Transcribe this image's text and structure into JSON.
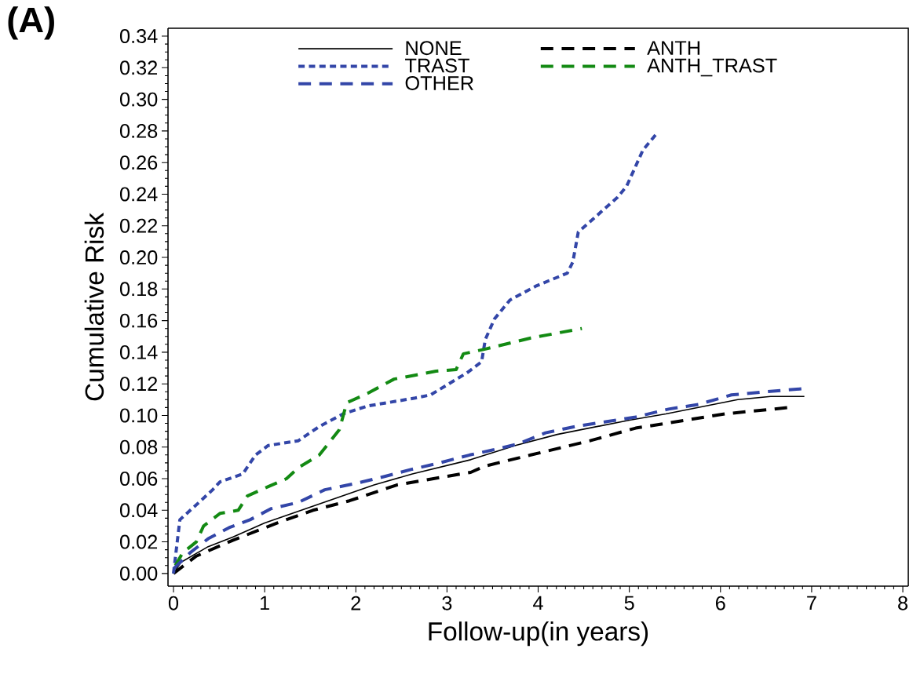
{
  "chart_data": {
    "type": "line",
    "xlabel": "Follow-up(in years)",
    "ylabel": "Cumulative Risk",
    "annotations": [
      "(A)"
    ],
    "xlim": [
      -0.06,
      8.06
    ],
    "ylim": [
      -0.008,
      0.345
    ],
    "xticks": [
      0,
      1,
      2,
      3,
      4,
      5,
      6,
      7,
      8
    ],
    "yticks": [
      {
        "value": 0,
        "label": "0.00"
      },
      {
        "value": 0.02,
        "label": "0.02"
      },
      {
        "value": 0.04,
        "label": "0.04"
      },
      {
        "value": 0.06,
        "label": "0.06"
      },
      {
        "value": 0.08,
        "label": "0.08"
      },
      {
        "value": 0.1,
        "label": "0.10"
      },
      {
        "value": 0.12,
        "label": "0.12"
      },
      {
        "value": 0.14,
        "label": "0.14"
      },
      {
        "value": 0.16,
        "label": "0.16"
      },
      {
        "value": 0.18,
        "label": "0.18"
      },
      {
        "value": 0.2,
        "label": "0.20"
      },
      {
        "value": 0.22,
        "label": "0.22"
      },
      {
        "value": 0.24,
        "label": "0.24"
      },
      {
        "value": 0.26,
        "label": "0.26"
      },
      {
        "value": 0.28,
        "label": "0.28"
      },
      {
        "value": 0.3,
        "label": "0.30"
      },
      {
        "value": 0.32,
        "label": "0.32"
      },
      {
        "value": 0.34,
        "label": "0.34"
      }
    ],
    "grid": false,
    "legend": "top",
    "marker": "none",
    "series": [
      {
        "name": "NONE",
        "color": "#000000",
        "line_style": "solid",
        "x": [
          0,
          0.08,
          0.38,
          0.65,
          1.0,
          1.4,
          1.8,
          2.2,
          2.62,
          3.26,
          3.75,
          4.21,
          5.0,
          5.4,
          6.19,
          6.55,
          6.92
        ],
        "values": [
          0,
          0.007,
          0.017,
          0.023,
          0.032,
          0.04,
          0.048,
          0.056,
          0.063,
          0.072,
          0.081,
          0.088,
          0.097,
          0.101,
          0.11,
          0.112,
          0.112
        ]
      },
      {
        "name": "ANTH",
        "color": "#000000",
        "line_style": "dashed",
        "x": [
          0,
          0.25,
          0.65,
          1.14,
          1.53,
          1.93,
          2.45,
          3.26,
          3.42,
          3.92,
          4.57,
          5.07,
          5.4,
          6.05,
          6.75
        ],
        "values": [
          0,
          0.011,
          0.021,
          0.032,
          0.04,
          0.046,
          0.056,
          0.064,
          0.068,
          0.075,
          0.084,
          0.092,
          0.095,
          0.101,
          0.105
        ]
      },
      {
        "name": "TRAST",
        "color": "#3346a8",
        "line_style": "dotted",
        "x": [
          0,
          0.07,
          0.28,
          0.43,
          0.51,
          0.76,
          0.9,
          1.04,
          1.37,
          1.6,
          1.86,
          2.13,
          2.65,
          2.82,
          3.22,
          3.38,
          3.42,
          3.52,
          3.69,
          3.98,
          4.32,
          4.38,
          4.44,
          4.87,
          4.97,
          5.15,
          5.31
        ],
        "values": [
          0,
          0.034,
          0.045,
          0.053,
          0.058,
          0.063,
          0.075,
          0.081,
          0.084,
          0.093,
          0.101,
          0.106,
          0.111,
          0.113,
          0.127,
          0.134,
          0.148,
          0.161,
          0.173,
          0.182,
          0.19,
          0.197,
          0.216,
          0.238,
          0.245,
          0.268,
          0.279
        ]
      },
      {
        "name": "ANTH_TRAST",
        "color": "#138a13",
        "line_style": "dashed",
        "x": [
          0.02,
          0.1,
          0.25,
          0.33,
          0.51,
          0.71,
          0.81,
          1.04,
          1.24,
          1.37,
          1.6,
          1.82,
          1.9,
          2.13,
          2.42,
          2.88,
          3.1,
          3.18,
          3.42,
          3.92,
          4.48
        ],
        "values": [
          0.005,
          0.013,
          0.02,
          0.03,
          0.038,
          0.04,
          0.049,
          0.055,
          0.06,
          0.067,
          0.075,
          0.091,
          0.108,
          0.114,
          0.123,
          0.128,
          0.129,
          0.139,
          0.142,
          0.149,
          0.155
        ]
      },
      {
        "name": "OTHER",
        "color": "#3346a8",
        "line_style": "dashed",
        "x": [
          0,
          0.18,
          0.38,
          0.61,
          0.84,
          1.07,
          1.37,
          1.66,
          2.0,
          2.29,
          2.62,
          2.92,
          3.25,
          3.49,
          3.78,
          4.08,
          4.41,
          4.74,
          5.07,
          5.43,
          5.76,
          6.12,
          6.49,
          6.92
        ],
        "values": [
          0.003,
          0.013,
          0.022,
          0.029,
          0.034,
          0.041,
          0.045,
          0.053,
          0.057,
          0.061,
          0.066,
          0.07,
          0.075,
          0.078,
          0.082,
          0.089,
          0.093,
          0.096,
          0.099,
          0.104,
          0.107,
          0.113,
          0.115,
          0.117
        ]
      }
    ]
  }
}
